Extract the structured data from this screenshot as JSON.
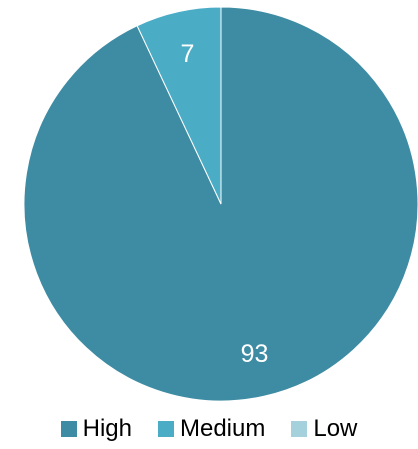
{
  "chart_data": {
    "type": "pie",
    "categories": [
      "High",
      "Medium",
      "Low"
    ],
    "values": [
      93,
      7,
      0
    ],
    "data_labels": [
      "93",
      "7",
      ""
    ],
    "colors": [
      "#3e8ca3",
      "#4bacc6",
      "#a5d1dd"
    ],
    "legend_position": "bottom",
    "start_angle_deg": 0,
    "direction": "clockwise"
  }
}
